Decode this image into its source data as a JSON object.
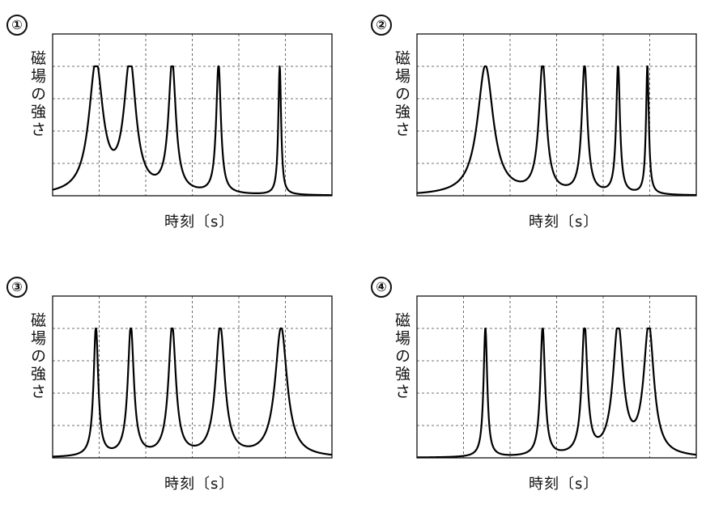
{
  "chart_data": [
    {
      "type": "line",
      "label": "①",
      "ylabel": "磁場の強さ",
      "xlabel": "時刻〔s〕",
      "series": [
        {
          "values": [
            [
              0.155,
              4.0,
              0.03
            ],
            [
              0.277,
              4.0,
              0.026
            ],
            [
              0.428,
              4.0,
              0.016
            ],
            [
              0.594,
              4.0,
              0.01
            ],
            [
              0.813,
              4.0,
              0.006
            ]
          ]
        }
      ]
    },
    {
      "type": "line",
      "label": "②",
      "ylabel": "磁場の強さ",
      "xlabel": "時刻〔s〕",
      "series": [
        {
          "values": [
            [
              0.245,
              4.0,
              0.034
            ],
            [
              0.45,
              4.0,
              0.016
            ],
            [
              0.6,
              4.0,
              0.012
            ],
            [
              0.72,
              4.0,
              0.008
            ],
            [
              0.825,
              4.0,
              0.006
            ]
          ]
        }
      ]
    },
    {
      "type": "line",
      "label": "③",
      "ylabel": "磁場の強さ",
      "xlabel": "時刻〔s〕",
      "series": [
        {
          "values": [
            [
              0.155,
              4.0,
              0.01
            ],
            [
              0.28,
              4.0,
              0.013
            ],
            [
              0.428,
              4.0,
              0.016
            ],
            [
              0.6,
              4.0,
              0.02
            ],
            [
              0.818,
              4.0,
              0.026
            ]
          ]
        }
      ]
    },
    {
      "type": "line",
      "label": "④",
      "ylabel": "磁場の強さ",
      "xlabel": "時刻〔s〕",
      "series": [
        {
          "values": [
            [
              0.245,
              4.0,
              0.008
            ],
            [
              0.45,
              4.0,
              0.01
            ],
            [
              0.6,
              4.0,
              0.012
            ],
            [
              0.72,
              4.0,
              0.022
            ],
            [
              0.83,
              4.0,
              0.022
            ]
          ]
        }
      ]
    }
  ]
}
